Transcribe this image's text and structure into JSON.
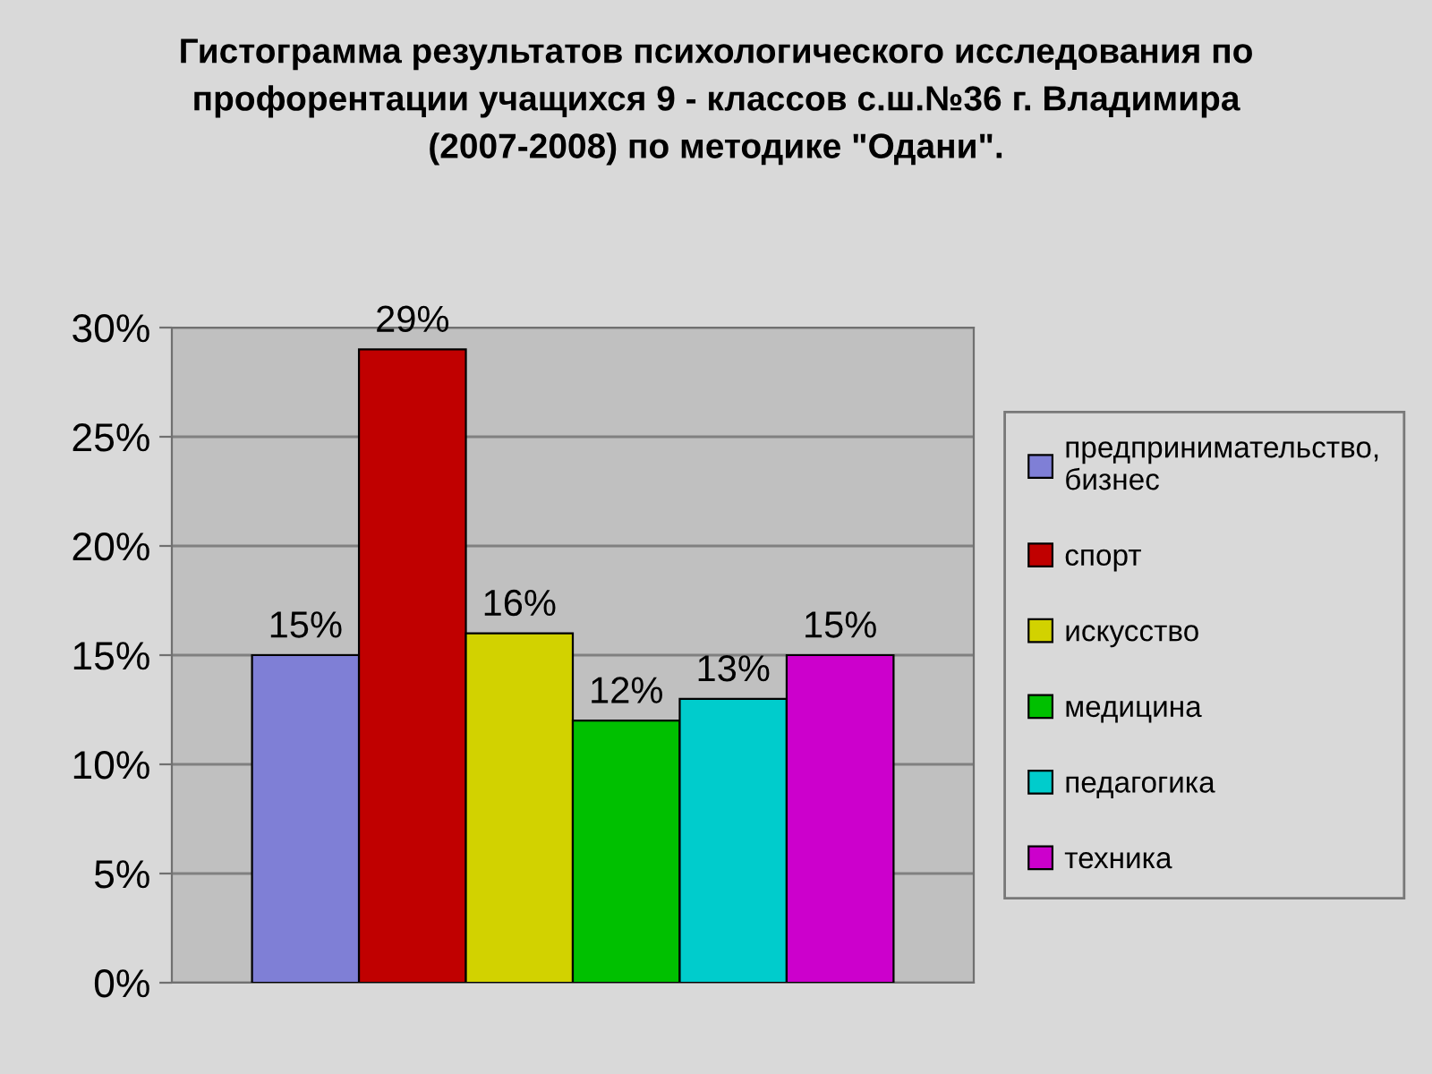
{
  "chart_data": {
    "type": "bar",
    "title": "Гистограмма результатов психологического исследования по\nпрофорентации учащихся 9 - классов с.ш.№36 г. Владимира\n(2007-2008) по методике \"Одани\".",
    "categories": [
      null
    ],
    "series": [
      {
        "name": "предпринимательство, бизнес",
        "color": "#7f7fd6",
        "values": [
          15
        ],
        "value_labels": [
          "15%"
        ]
      },
      {
        "name": "спорт",
        "color": "#c00000",
        "values": [
          29
        ],
        "value_labels": [
          "29%"
        ]
      },
      {
        "name": "искусство",
        "color": "#d2d200",
        "values": [
          16
        ],
        "value_labels": [
          "16%"
        ]
      },
      {
        "name": "медицина",
        "color": "#00c000",
        "values": [
          12
        ],
        "value_labels": [
          "12%"
        ]
      },
      {
        "name": "педагогика",
        "color": "#00cccc",
        "values": [
          13
        ],
        "value_labels": [
          "13%"
        ]
      },
      {
        "name": "техника",
        "color": "#cc00cc",
        "values": [
          15
        ],
        "value_labels": [
          "15%"
        ]
      }
    ],
    "ylim": [
      0,
      30
    ],
    "yticks": [
      {
        "value": 0,
        "label": "0%"
      },
      {
        "value": 5,
        "label": "5%"
      },
      {
        "value": 10,
        "label": "10%"
      },
      {
        "value": 15,
        "label": "15%"
      },
      {
        "value": 20,
        "label": "20%"
      },
      {
        "value": 25,
        "label": "25%"
      },
      {
        "value": 30,
        "label": "30%"
      }
    ],
    "grid": "y",
    "legend": "right"
  }
}
